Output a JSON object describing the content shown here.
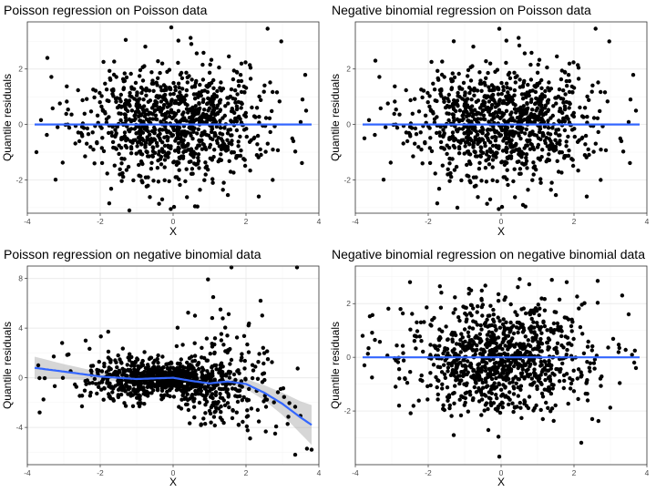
{
  "chart_data": [
    {
      "type": "scatter",
      "id": "p1",
      "title": "Poisson regression on Poisson data",
      "xlabel": "X",
      "ylabel": "Quantile residuals",
      "xlim": [
        -4.0,
        4.0
      ],
      "ylim": [
        -3.2,
        3.7
      ],
      "xticks": [
        -4,
        -2,
        0,
        2,
        4
      ],
      "yticks": [
        -2,
        0,
        2
      ],
      "grid": true,
      "n_points": 1000,
      "seed": 11,
      "spread_x": 1.25,
      "spread_y": 1.0,
      "smooth": {
        "x": [
          -3.8,
          3.8
        ],
        "y": [
          0.0,
          0.0
        ],
        "color": "#3366ff"
      },
      "notable_points": [
        {
          "x": -0.05,
          "y": 3.5
        },
        {
          "x": -1.3,
          "y": 3.05
        },
        {
          "x": 0.5,
          "y": 2.9
        },
        {
          "x": -3.45,
          "y": 2.4
        },
        {
          "x": 3.55,
          "y": 0.9
        },
        {
          "x": 3.65,
          "y": 0.5
        },
        {
          "x": 3.3,
          "y": -0.6
        },
        {
          "x": -3.75,
          "y": -1.0
        },
        {
          "x": -1.2,
          "y": -3.1
        },
        {
          "x": -0.3,
          "y": -2.7
        },
        {
          "x": 0.6,
          "y": -2.95
        },
        {
          "x": 2.35,
          "y": -2.6
        }
      ]
    },
    {
      "type": "scatter",
      "id": "p2",
      "title": "Negative binomial regression on Poisson data",
      "xlabel": "X",
      "ylabel": "Quantile residuals",
      "xlim": [
        -4.0,
        4.0
      ],
      "ylim": [
        -3.2,
        3.7
      ],
      "xticks": [
        -4,
        -2,
        0,
        2,
        4
      ],
      "yticks": [
        -2,
        0,
        2
      ],
      "grid": true,
      "n_points": 1000,
      "seed": 11,
      "spread_x": 1.25,
      "spread_y": 1.0,
      "smooth": {
        "x": [
          -3.8,
          3.8
        ],
        "y": [
          0.0,
          0.0
        ],
        "color": "#3366ff"
      },
      "notable_points": [
        {
          "x": -0.05,
          "y": 3.45
        },
        {
          "x": -1.3,
          "y": 3.0
        },
        {
          "x": 0.5,
          "y": 2.85
        },
        {
          "x": -3.45,
          "y": 2.3
        },
        {
          "x": 3.55,
          "y": 0.9
        },
        {
          "x": 3.7,
          "y": 0.5
        },
        {
          "x": 3.3,
          "y": -0.6
        },
        {
          "x": -3.75,
          "y": -0.5
        },
        {
          "x": -1.2,
          "y": -3.0
        },
        {
          "x": -0.3,
          "y": -2.7
        },
        {
          "x": 0.6,
          "y": -2.9
        },
        {
          "x": 2.35,
          "y": -2.6
        }
      ]
    },
    {
      "type": "scatter",
      "id": "p3",
      "title": "Poisson regression on negative binomial data",
      "xlabel": "X",
      "ylabel": "Quantile residuals",
      "xlim": [
        -4.0,
        4.0
      ],
      "ylim": [
        -7.0,
        9.0
      ],
      "xticks": [
        -4,
        -2,
        0,
        2,
        4
      ],
      "yticks": [
        -4,
        0,
        4,
        8
      ],
      "grid": true,
      "n_points": 1000,
      "seed": 29,
      "spread_x": 1.2,
      "spread_y": 1.4,
      "hetero": true,
      "smooth": {
        "x": [
          -3.8,
          -3.0,
          -2.0,
          -1.0,
          0.0,
          0.5,
          1.0,
          1.5,
          2.0,
          2.5,
          3.0,
          3.5,
          3.8
        ],
        "y": [
          0.8,
          0.5,
          0.1,
          -0.1,
          0.0,
          -0.25,
          -0.45,
          -0.3,
          -0.5,
          -1.2,
          -2.1,
          -3.2,
          -3.8
        ],
        "se": [
          0.9,
          0.6,
          0.35,
          0.2,
          0.15,
          0.18,
          0.2,
          0.28,
          0.4,
          0.6,
          0.9,
          1.3,
          1.6
        ],
        "color": "#3366ff"
      },
      "notable_points": [
        {
          "x": 1.6,
          "y": 8.9
        },
        {
          "x": 3.4,
          "y": 8.9
        },
        {
          "x": 1.1,
          "y": 6.5
        },
        {
          "x": 2.4,
          "y": 6.2
        },
        {
          "x": 1.3,
          "y": 5.5
        },
        {
          "x": 0.6,
          "y": 5.0
        },
        {
          "x": -2.4,
          "y": 3.0
        },
        {
          "x": -3.7,
          "y": 1.0
        },
        {
          "x": 2.6,
          "y": 1.5
        },
        {
          "x": -2.5,
          "y": -2.3
        },
        {
          "x": 3.35,
          "y": -6.2
        },
        {
          "x": 3.8,
          "y": -5.8
        },
        {
          "x": 2.8,
          "y": -4.5
        },
        {
          "x": 1.8,
          "y": -3.8
        }
      ]
    },
    {
      "type": "scatter",
      "id": "p4",
      "title": "Negative binomial regression on negative binomial data",
      "xlabel": "X",
      "ylabel": "Quantile residuals",
      "xlim": [
        -4.0,
        4.0
      ],
      "ylim": [
        -4.0,
        3.4
      ],
      "xticks": [
        -4,
        -2,
        0,
        2,
        4
      ],
      "yticks": [
        -2,
        0,
        2
      ],
      "grid": true,
      "n_points": 1000,
      "seed": 47,
      "spread_x": 1.25,
      "spread_y": 1.0,
      "smooth": {
        "x": [
          -3.8,
          3.8
        ],
        "y": [
          0.0,
          0.0
        ],
        "color": "#3366ff"
      },
      "notable_points": [
        {
          "x": -0.05,
          "y": -3.7
        },
        {
          "x": -2.5,
          "y": 2.8
        },
        {
          "x": 1.8,
          "y": 2.8
        },
        {
          "x": -1.3,
          "y": -2.9
        },
        {
          "x": 3.5,
          "y": 1.6
        },
        {
          "x": -3.8,
          "y": 0.8
        },
        {
          "x": -3.75,
          "y": -0.3
        },
        {
          "x": 3.7,
          "y": -0.4
        },
        {
          "x": -2.8,
          "y": -1.8
        },
        {
          "x": 2.5,
          "y": -2.3
        }
      ]
    }
  ]
}
